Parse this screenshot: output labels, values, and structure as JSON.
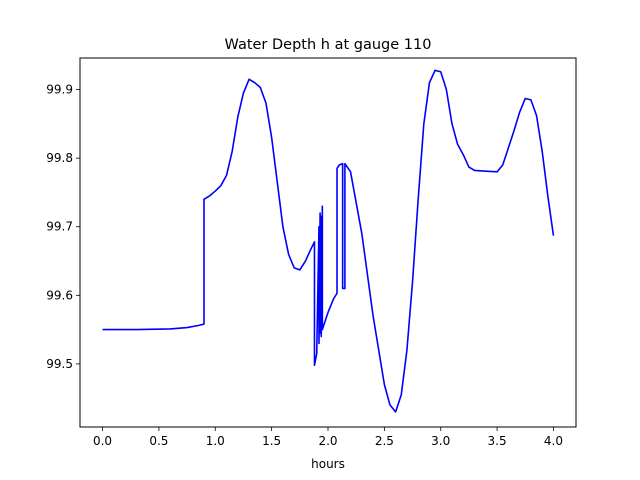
{
  "chart_data": {
    "type": "line",
    "title": "Water Depth h at gauge 110",
    "xlabel": "hours",
    "ylabel": "",
    "xlim": [
      -0.2,
      4.2
    ],
    "ylim": [
      99.408,
      99.946
    ],
    "x_ticks": [
      0.0,
      0.5,
      1.0,
      1.5,
      2.0,
      2.5,
      3.0,
      3.5,
      4.0
    ],
    "x_tick_labels": [
      "0.0",
      "0.5",
      "1.0",
      "1.5",
      "2.0",
      "2.5",
      "3.0",
      "3.5",
      "4.0"
    ],
    "y_ticks": [
      99.5,
      99.6,
      99.7,
      99.8,
      99.9
    ],
    "y_tick_labels": [
      "99.5",
      "99.6",
      "99.7",
      "99.8",
      "99.9"
    ],
    "grid": false,
    "series": [
      {
        "color": "#0000ff",
        "x": [
          0.0,
          0.3,
          0.6,
          0.75,
          0.85,
          0.9,
          0.9,
          0.95,
          1.0,
          1.05,
          1.1,
          1.15,
          1.2,
          1.25,
          1.3,
          1.35,
          1.4,
          1.45,
          1.5,
          1.55,
          1.6,
          1.65,
          1.7,
          1.75,
          1.8,
          1.85,
          1.88,
          1.88,
          1.9,
          1.92,
          1.92,
          1.93,
          1.93,
          1.94,
          1.94,
          1.95,
          1.95,
          1.97,
          2.0,
          2.05,
          2.08,
          2.08,
          2.1,
          2.13,
          2.13,
          2.15,
          2.15,
          2.2,
          2.3,
          2.4,
          2.5,
          2.55,
          2.6,
          2.65,
          2.7,
          2.75,
          2.8,
          2.85,
          2.9,
          2.95,
          3.0,
          3.05,
          3.1,
          3.15,
          3.2,
          3.25,
          3.3,
          3.4,
          3.5,
          3.55,
          3.6,
          3.65,
          3.7,
          3.75,
          3.8,
          3.85,
          3.9,
          3.95,
          4.0
        ],
        "y": [
          99.55,
          99.55,
          99.551,
          99.553,
          99.556,
          99.558,
          99.74,
          99.745,
          99.752,
          99.76,
          99.775,
          99.81,
          99.86,
          99.895,
          99.915,
          99.91,
          99.903,
          99.88,
          99.83,
          99.765,
          99.7,
          99.66,
          99.64,
          99.637,
          99.65,
          99.668,
          99.678,
          99.498,
          99.515,
          99.7,
          99.53,
          99.72,
          99.545,
          99.715,
          99.54,
          99.73,
          99.55,
          99.56,
          99.575,
          99.595,
          99.603,
          99.785,
          99.79,
          99.792,
          99.61,
          99.61,
          99.792,
          99.78,
          99.69,
          99.57,
          99.47,
          99.44,
          99.43,
          99.455,
          99.52,
          99.62,
          99.74,
          99.85,
          99.91,
          99.928,
          99.926,
          99.9,
          99.85,
          99.82,
          99.805,
          99.787,
          99.782,
          99.781,
          99.78,
          99.79,
          99.815,
          99.84,
          99.867,
          99.887,
          99.885,
          99.862,
          99.81,
          99.745,
          99.687
        ]
      }
    ]
  }
}
